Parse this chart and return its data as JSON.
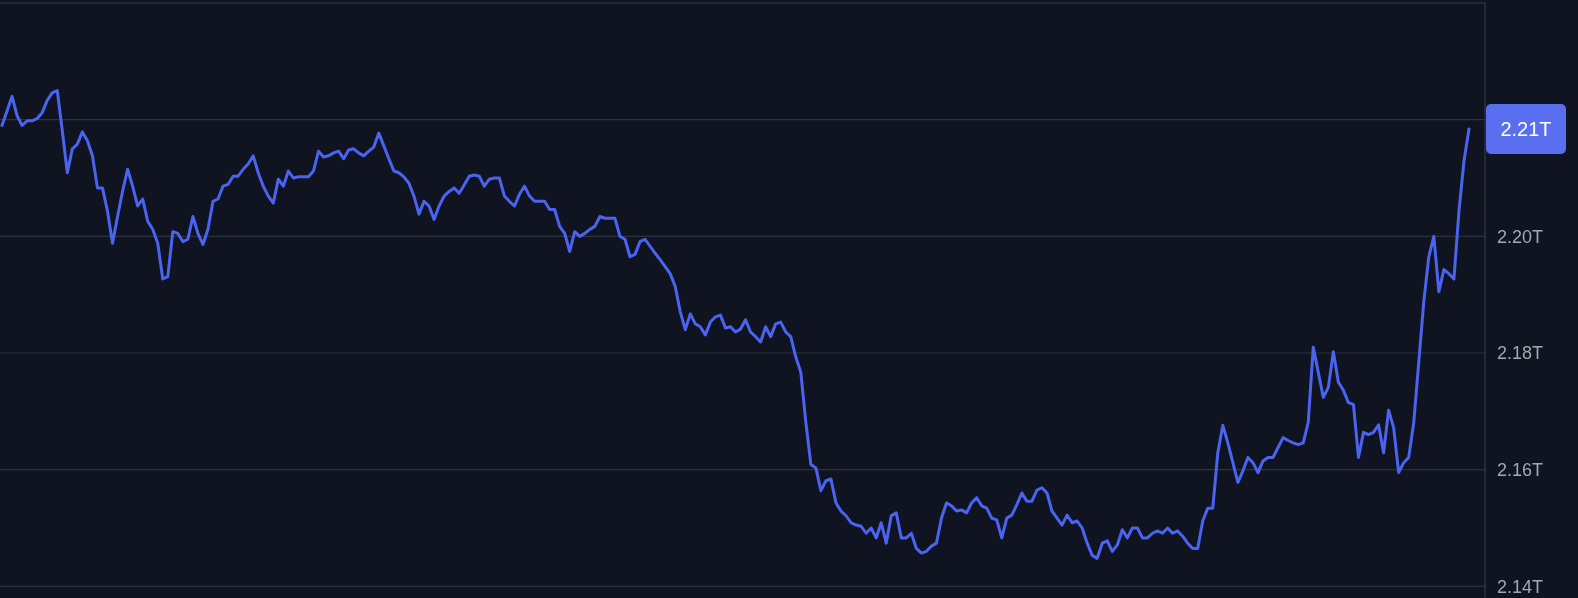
{
  "chart_data": {
    "type": "line",
    "categories": [
      null,
      null,
      null,
      null,
      null,
      null,
      null,
      null,
      null,
      null,
      null,
      null,
      null,
      null,
      null,
      null,
      null,
      null,
      null,
      null,
      null,
      null,
      null,
      null,
      null,
      null,
      null,
      null,
      null,
      null,
      null,
      null,
      null,
      null,
      null,
      null,
      null,
      null,
      null,
      null,
      null,
      null,
      null,
      null,
      null,
      null,
      null,
      null,
      null,
      null,
      null,
      null,
      null,
      null,
      null,
      null,
      null,
      null,
      null,
      null,
      null,
      null,
      null,
      null,
      null,
      null,
      null,
      null,
      null,
      null,
      null,
      null,
      null,
      null,
      null,
      null,
      null,
      null,
      null,
      null,
      null,
      null,
      null,
      null,
      null,
      null,
      null,
      null,
      null,
      null,
      null,
      null,
      null,
      null,
      null,
      null,
      null,
      null,
      null,
      null,
      null,
      null,
      null,
      null,
      null,
      null,
      null,
      null,
      null,
      null,
      null,
      null,
      null,
      null,
      null,
      null,
      null,
      null,
      null,
      null,
      null,
      null,
      null,
      null,
      null,
      null,
      null,
      null,
      null,
      null,
      null,
      null,
      null,
      null,
      null,
      null,
      null,
      null,
      null,
      null,
      null,
      null,
      null,
      null,
      null,
      null,
      null,
      null,
      null,
      null,
      null,
      null,
      null,
      null,
      null,
      null,
      null,
      null,
      null,
      null,
      null,
      null,
      null,
      null,
      null,
      null,
      null,
      null,
      null,
      null,
      null,
      null,
      null,
      null,
      null,
      null,
      null,
      null,
      null,
      null,
      null,
      null,
      null,
      null,
      null,
      null,
      null,
      null,
      null,
      null,
      null,
      null,
      null,
      null,
      null,
      null,
      null,
      null,
      null,
      null,
      null,
      null,
      null,
      null,
      null,
      null,
      null,
      null,
      null,
      null,
      null,
      null,
      null,
      null,
      null,
      null,
      null,
      null,
      null,
      null,
      null,
      null,
      null,
      null,
      null,
      null,
      null,
      null,
      null,
      null,
      null,
      null,
      null,
      null,
      null,
      null,
      null,
      null,
      null,
      null,
      null,
      null,
      null,
      null,
      null,
      null,
      null,
      null,
      null,
      null,
      null,
      null,
      null,
      null,
      null,
      null,
      null,
      null,
      null,
      null,
      null,
      null,
      null,
      null,
      null,
      null,
      null,
      null,
      null,
      null,
      null,
      null,
      null,
      null,
      null,
      null,
      null,
      null,
      null,
      null,
      null,
      null,
      null,
      null,
      null,
      null,
      null,
      null,
      null,
      null,
      null,
      null,
      null
    ],
    "series": [
      {
        "color": "#4a63f0",
        "values": [
          2.219,
          2.2215,
          2.224,
          2.2207,
          2.219,
          2.2198,
          2.2198,
          2.2202,
          2.2212,
          2.2233,
          2.2246,
          2.225,
          2.2181,
          2.2109,
          2.215,
          2.2158,
          2.2179,
          2.2164,
          2.2138,
          2.2083,
          2.2083,
          2.2043,
          2.1988,
          2.2034,
          2.2077,
          2.2115,
          2.2086,
          2.2052,
          2.2064,
          2.2026,
          2.2012,
          2.1988,
          2.1927,
          2.1931,
          2.2008,
          2.2005,
          2.1991,
          2.1995,
          2.2034,
          2.2005,
          2.1986,
          2.2012,
          2.206,
          2.2064,
          2.2086,
          2.2089,
          2.2103,
          2.2103,
          2.2115,
          2.2124,
          2.2138,
          2.2109,
          2.2086,
          2.2069,
          2.2057,
          2.2098,
          2.2086,
          2.2112,
          2.21,
          2.2102,
          2.2102,
          2.2102,
          2.2112,
          2.2146,
          2.2136,
          2.2138,
          2.2143,
          2.2146,
          2.2133,
          2.2148,
          2.215,
          2.2143,
          2.2138,
          2.2146,
          2.2153,
          2.2177,
          2.2155,
          2.2133,
          2.2112,
          2.2109,
          2.2102,
          2.2091,
          2.2069,
          2.2038,
          2.206,
          2.2052,
          2.2029,
          2.2052,
          2.2069,
          2.2077,
          2.2083,
          2.2074,
          2.2088,
          2.2103,
          2.2105,
          2.2103,
          2.2086,
          2.2098,
          2.21,
          2.21,
          2.2069,
          2.206,
          2.2052,
          2.2072,
          2.2086,
          2.2069,
          2.206,
          2.206,
          2.206,
          2.2046,
          2.2046,
          2.2017,
          2.2005,
          2.1974,
          2.2008,
          2.2,
          2.2005,
          2.2012,
          2.2017,
          2.2034,
          2.2031,
          2.2031,
          2.2031,
          2.2,
          2.1995,
          2.1965,
          2.1969,
          2.1991,
          2.1995,
          2.1983,
          2.1971,
          2.196,
          2.1948,
          2.1936,
          2.1914,
          2.1871,
          2.184,
          2.1867,
          2.185,
          2.1845,
          2.1831,
          2.1853,
          2.1862,
          2.1865,
          2.1843,
          2.1845,
          2.1836,
          2.1841,
          2.1857,
          2.1836,
          2.1828,
          2.1819,
          2.1845,
          2.1828,
          2.185,
          2.1853,
          2.1836,
          2.1828,
          2.1793,
          2.1767,
          2.1681,
          2.1609,
          2.1603,
          2.1564,
          2.1581,
          2.1584,
          2.1543,
          2.1529,
          2.1521,
          2.1509,
          2.1505,
          2.1503,
          2.1491,
          2.15,
          2.1483,
          2.1509,
          2.1474,
          2.1521,
          2.1526,
          2.1483,
          2.1483,
          2.1491,
          2.1465,
          2.1457,
          2.146,
          2.1469,
          2.1474,
          2.1517,
          2.1543,
          2.1538,
          2.1529,
          2.1531,
          2.1526,
          2.1543,
          2.1552,
          2.1538,
          2.1534,
          2.1517,
          2.1514,
          2.1483,
          2.1517,
          2.1522,
          2.154,
          2.156,
          2.1546,
          2.1546,
          2.1565,
          2.1569,
          2.156,
          2.1529,
          2.1517,
          2.1505,
          2.1522,
          2.1509,
          2.1512,
          2.15,
          2.1474,
          2.1453,
          2.1448,
          2.1474,
          2.1478,
          2.146,
          2.1471,
          2.1497,
          2.1483,
          2.15,
          2.15,
          2.1483,
          2.1483,
          2.1491,
          2.1495,
          2.1491,
          2.15,
          2.1491,
          2.1495,
          2.1486,
          2.1474,
          2.1465,
          2.1465,
          2.1512,
          2.1534,
          2.1534,
          2.1629,
          2.1676,
          2.1646,
          2.1612,
          2.1578,
          2.1598,
          2.1621,
          2.1612,
          2.1595,
          2.1615,
          2.1621,
          2.1621,
          2.1638,
          2.1655,
          2.165,
          2.1646,
          2.1643,
          2.1646,
          2.1681,
          2.181,
          2.1767,
          2.1724,
          2.1741,
          2.1802,
          2.175,
          2.1736,
          2.1715,
          2.1712,
          2.1621,
          2.1664,
          2.166,
          2.1664,
          2.1677,
          2.1629,
          2.1702,
          2.1672,
          2.1595,
          2.1612,
          2.1621,
          2.1681,
          2.1784,
          2.1888,
          2.1965,
          2.2,
          2.1905,
          2.1943,
          2.1936,
          2.1927,
          2.2043,
          2.2129,
          2.2184
        ]
      }
    ],
    "ylim": [
      2.138,
      2.24
    ],
    "yticks": [
      {
        "value": 2.14,
        "label": "2.14T"
      },
      {
        "value": 2.16,
        "label": "2.16T"
      },
      {
        "value": 2.18,
        "label": "2.18T"
      },
      {
        "value": 2.2,
        "label": "2.20T"
      },
      {
        "value": 2.22,
        "label": null
      }
    ],
    "grid": true,
    "annotations": [
      "2.21T"
    ]
  }
}
